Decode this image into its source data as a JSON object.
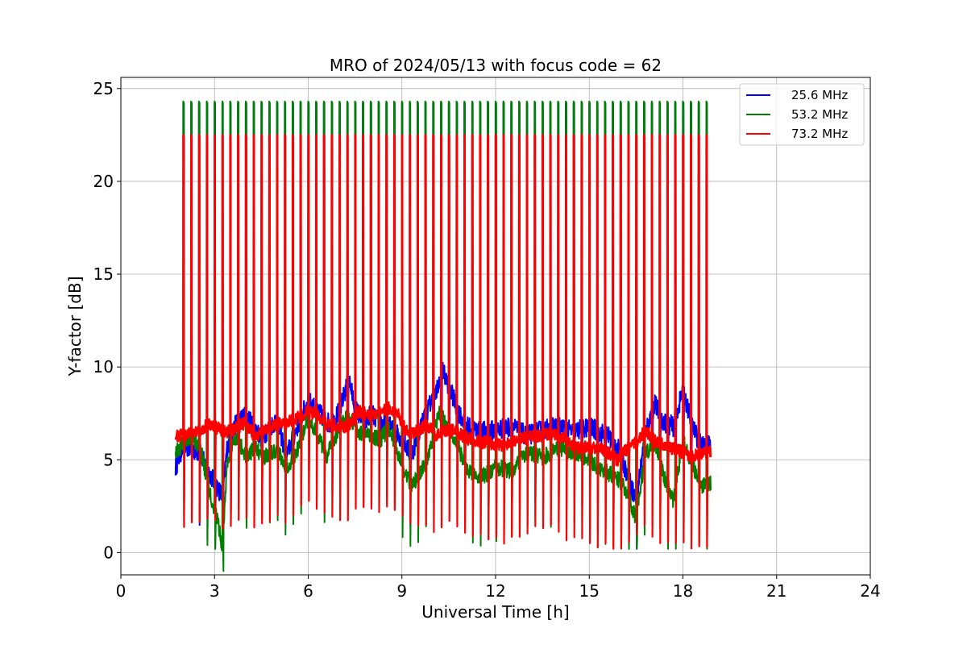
{
  "chart_data": {
    "type": "line",
    "title": "MRO of 2024/05/13 with focus code = 62",
    "xlabel": "Universal Time [h]",
    "ylabel": "Y-factor [dB]",
    "xlim": [
      0,
      24
    ],
    "ylim": [
      -1.2,
      25.6
    ],
    "xticks": [
      0,
      3,
      6,
      9,
      12,
      15,
      18,
      21,
      24
    ],
    "yticks": [
      0,
      5,
      10,
      15,
      20,
      25
    ],
    "grid": true,
    "legend_position": "top-right",
    "data_range_hours": [
      1.75,
      18.9
    ],
    "calibration_pulses": {
      "first_time": 2.0,
      "interval_hours": 0.25,
      "last_time": 18.75,
      "peak_values": {
        "25.6 MHz": 24.2,
        "53.2 MHz": 24.3,
        "73.2 MHz": 22.5
      }
    },
    "series": [
      {
        "name": "25.6 MHz",
        "color": "#0000ff",
        "baseline": {
          "x": [
            1.75,
            2.0,
            2.5,
            2.8,
            3.1,
            3.25,
            3.4,
            3.7,
            4.0,
            4.5,
            5.0,
            5.3,
            5.7,
            6.0,
            6.3,
            6.7,
            7.0,
            7.3,
            7.5,
            7.8,
            8.0,
            8.3,
            8.6,
            9.0,
            9.3,
            9.6,
            9.9,
            10.1,
            10.3,
            10.5,
            10.8,
            11.1,
            11.5,
            12.0,
            12.5,
            13.0,
            13.5,
            14.0,
            14.5,
            15.0,
            15.3,
            15.6,
            15.9,
            16.2,
            16.5,
            16.8,
            17.1,
            17.4,
            17.7,
            18.0,
            18.3,
            18.6,
            18.9
          ],
          "y": [
            4.6,
            5.8,
            5.4,
            4.4,
            3.5,
            3.0,
            5.6,
            7.0,
            7.4,
            6.2,
            7.2,
            5.2,
            7.0,
            8.2,
            7.6,
            6.9,
            7.6,
            9.4,
            7.8,
            6.9,
            7.5,
            7.0,
            6.8,
            6.2,
            5.2,
            6.8,
            8.0,
            8.6,
            9.8,
            9.0,
            7.6,
            6.8,
            6.5,
            6.6,
            6.8,
            6.3,
            6.6,
            6.8,
            6.5,
            6.8,
            6.5,
            6.3,
            5.7,
            4.3,
            2.8,
            6.5,
            8.0,
            7.0,
            6.8,
            8.8,
            6.8,
            5.7,
            5.8
          ]
        }
      },
      {
        "name": "53.2 MHz",
        "color": "#008000",
        "baseline": {
          "x": [
            1.75,
            2.0,
            2.3,
            2.6,
            2.9,
            3.1,
            3.25,
            3.4,
            3.7,
            4.0,
            4.3,
            4.6,
            5.0,
            5.3,
            5.6,
            6.0,
            6.3,
            6.6,
            7.0,
            7.3,
            7.6,
            8.0,
            8.3,
            8.6,
            9.0,
            9.3,
            9.6,
            9.9,
            10.2,
            10.5,
            10.8,
            11.1,
            11.5,
            12.0,
            12.5,
            13.0,
            13.5,
            14.0,
            14.5,
            15.0,
            15.3,
            15.6,
            15.9,
            16.2,
            16.5,
            16.8,
            17.1,
            17.4,
            17.7,
            18.0,
            18.3,
            18.6,
            18.9
          ],
          "y": [
            5.4,
            5.9,
            6.3,
            5.2,
            2.9,
            1.8,
            0.2,
            4.8,
            6.3,
            5.1,
            5.6,
            5.2,
            5.6,
            4.6,
            5.3,
            7.3,
            6.3,
            5.2,
            6.7,
            7.4,
            6.5,
            6.3,
            6.1,
            6.7,
            4.8,
            3.6,
            4.3,
            5.4,
            7.6,
            6.7,
            5.7,
            4.4,
            4.0,
            4.6,
            4.4,
            5.4,
            5.1,
            5.6,
            5.4,
            5.0,
            4.6,
            4.3,
            4.0,
            3.3,
            1.8,
            5.4,
            5.9,
            4.1,
            2.8,
            6.1,
            4.6,
            3.6,
            3.8
          ]
        }
      },
      {
        "name": "73.2 MHz",
        "color": "#ff0000",
        "baseline": {
          "x": [
            1.75,
            2.0,
            2.5,
            2.8,
            3.0,
            3.3,
            3.6,
            4.0,
            4.3,
            4.6,
            5.0,
            5.3,
            5.6,
            6.0,
            6.3,
            6.6,
            7.0,
            7.3,
            7.6,
            8.0,
            8.3,
            8.6,
            8.9,
            9.2,
            9.5,
            9.8,
            10.1,
            10.4,
            10.7,
            11.0,
            11.4,
            11.8,
            12.2,
            12.6,
            13.0,
            13.4,
            13.8,
            14.2,
            14.6,
            15.0,
            15.3,
            15.6,
            15.9,
            16.2,
            16.5,
            16.8,
            17.1,
            17.4,
            17.7,
            18.0,
            18.3,
            18.6,
            18.9
          ],
          "y": [
            6.3,
            6.3,
            6.6,
            6.9,
            6.8,
            6.5,
            6.6,
            7.0,
            6.2,
            6.6,
            6.9,
            7.0,
            7.2,
            7.6,
            7.4,
            6.9,
            6.8,
            6.8,
            7.6,
            7.4,
            7.6,
            7.8,
            7.4,
            6.4,
            6.6,
            6.9,
            6.3,
            6.6,
            6.6,
            6.2,
            6.0,
            5.9,
            5.8,
            6.0,
            6.2,
            6.3,
            6.4,
            6.1,
            5.6,
            5.7,
            5.6,
            5.4,
            5.0,
            5.6,
            5.9,
            6.6,
            6.0,
            5.8,
            5.6,
            5.4,
            5.2,
            5.3,
            5.4
          ]
        }
      }
    ]
  }
}
